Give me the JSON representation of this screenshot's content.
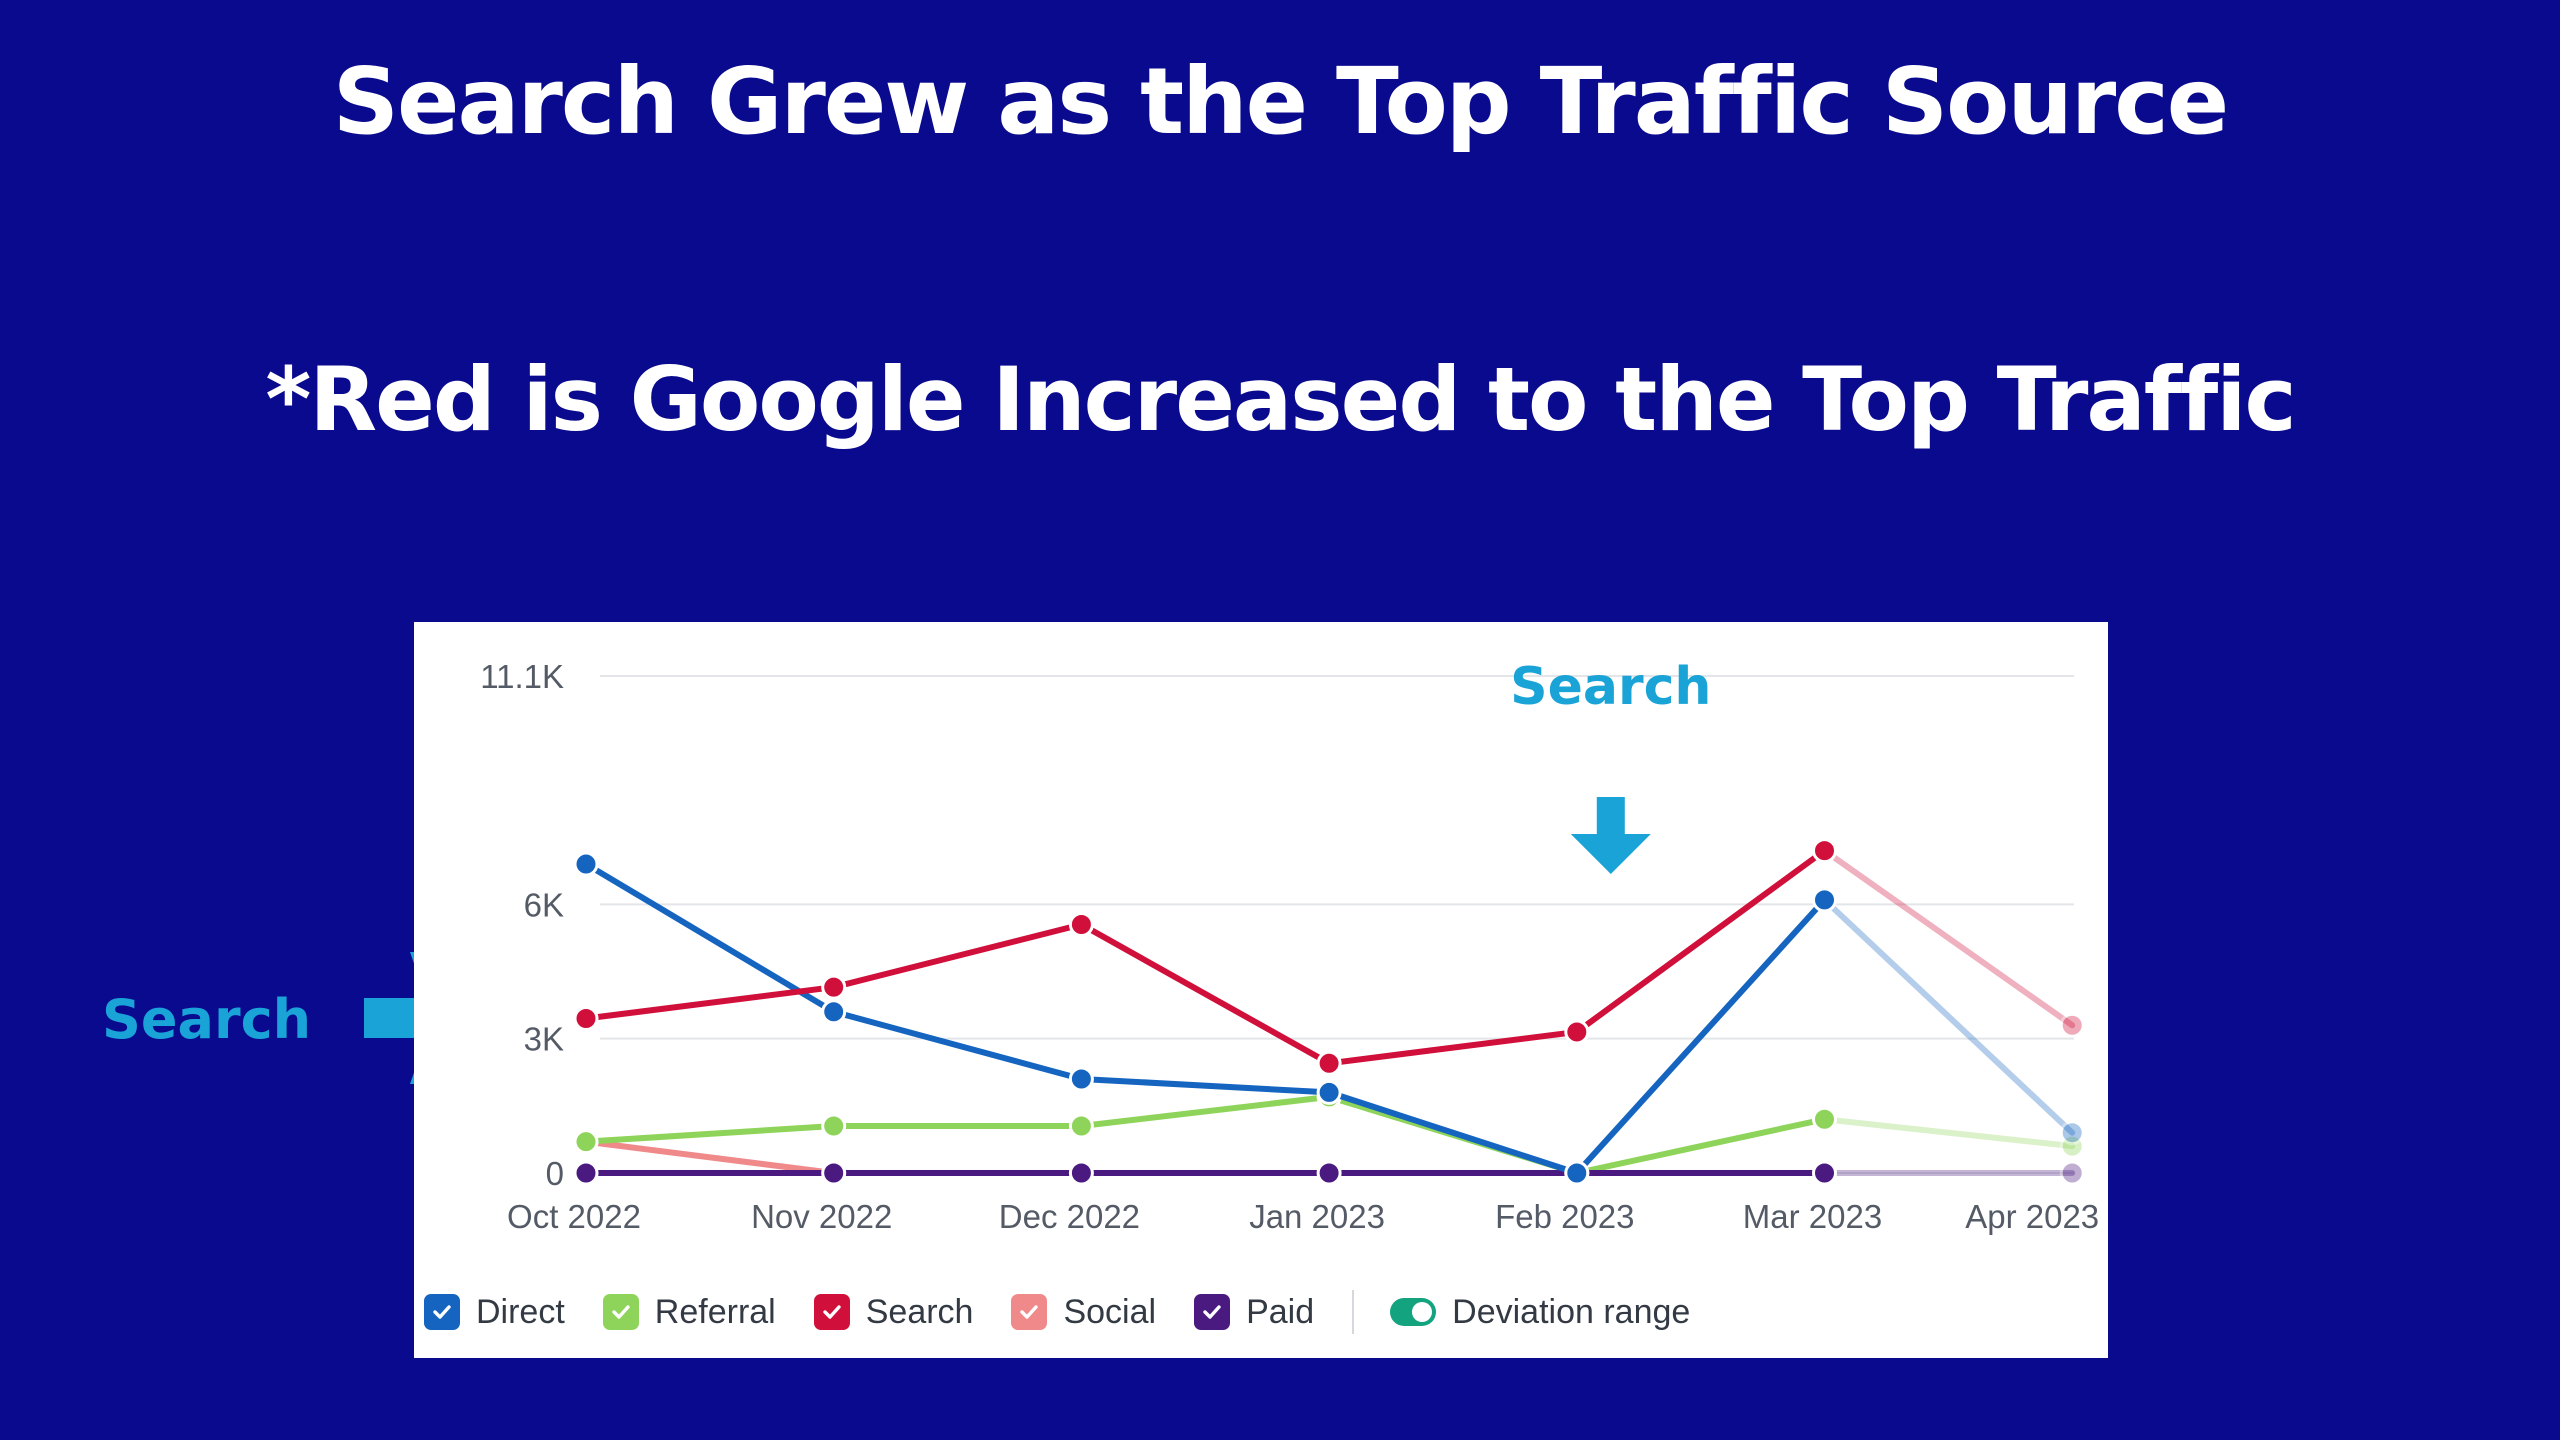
{
  "slide": {
    "title": "Search Grew as the Top Traffic Source",
    "subtitle": "*Red is Google Increased to the Top Traffic",
    "left_callout": "Search",
    "top_callout": "Search",
    "background_color": "#0a0a8f",
    "callout_color": "#1aa3d6"
  },
  "chart_data": {
    "type": "line",
    "title": "",
    "xlabel": "",
    "ylabel": "",
    "categories": [
      "Oct 2022",
      "Nov 2022",
      "Dec 2022",
      "Jan 2023",
      "Feb 2023",
      "Mar 2023",
      "Apr 2023"
    ],
    "y_ticks": [
      {
        "value": 11100,
        "label": "11.1K"
      },
      {
        "value": 6000,
        "label": "6K"
      },
      {
        "value": 3000,
        "label": "3K"
      },
      {
        "value": 0,
        "label": "0"
      }
    ],
    "ylim": [
      0,
      11100
    ],
    "grid": true,
    "projected_last_point": true,
    "series": [
      {
        "name": "Direct",
        "color": "#1565c0",
        "values": [
          6900,
          3600,
          2100,
          1800,
          0,
          6100,
          900
        ]
      },
      {
        "name": "Referral",
        "color": "#8ed45a",
        "values": [
          700,
          1050,
          1050,
          1700,
          0,
          1200,
          600
        ]
      },
      {
        "name": "Search",
        "color": "#d0103a",
        "values": [
          3450,
          4150,
          5550,
          2450,
          3150,
          7200,
          3300
        ]
      },
      {
        "name": "Social",
        "color": "#f08a8a",
        "values": [
          700,
          0,
          null,
          null,
          null,
          null,
          null
        ]
      },
      {
        "name": "Paid",
        "color": "#4a1a80",
        "values": [
          0,
          0,
          0,
          0,
          0,
          0,
          0
        ]
      }
    ],
    "annotations": [
      {
        "text": "Search",
        "arrow": "down",
        "category": "Feb 2023"
      }
    ],
    "legend": {
      "placement": "bottom-left",
      "items": [
        {
          "label": "Direct",
          "color": "#1565c0"
        },
        {
          "label": "Referral",
          "color": "#8ed45a"
        },
        {
          "label": "Search",
          "color": "#d0103a"
        },
        {
          "label": "Social",
          "color": "#f08a8a"
        },
        {
          "label": "Paid",
          "color": "#4a1a80"
        }
      ],
      "toggle": {
        "label": "Deviation range",
        "color": "#14a37f",
        "on": true
      }
    }
  }
}
